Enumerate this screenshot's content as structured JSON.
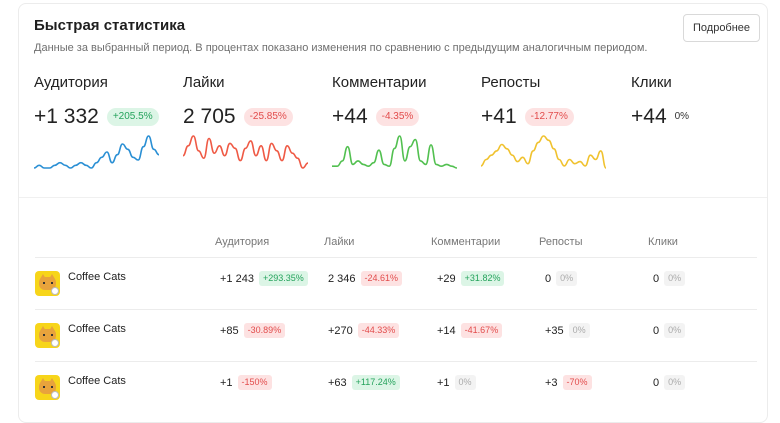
{
  "header": {
    "title": "Быстрая статистика",
    "subtitle": "Данные за выбранный период. В процентах показано изменения по сравнению с предыдущим аналогичным периодом.",
    "more_label": "Подробнее"
  },
  "metrics": [
    {
      "label": "Аудитория",
      "value": "+1 332",
      "change": "+205.5%",
      "trend": "pos",
      "color": "#2a8fd4",
      "spark": [
        4,
        5,
        4,
        4,
        5,
        6,
        5,
        4,
        5,
        6,
        5,
        4,
        6,
        8,
        10,
        6,
        9,
        13,
        11,
        8,
        7,
        12,
        16,
        11,
        9
      ]
    },
    {
      "label": "Лайки",
      "value": "2 705",
      "change": "-25.85%",
      "trend": "neg",
      "color": "#ef5a45",
      "spark": [
        8,
        12,
        16,
        10,
        7,
        15,
        9,
        12,
        8,
        13,
        11,
        6,
        11,
        14,
        8,
        12,
        6,
        13,
        10,
        6,
        12,
        9,
        7,
        3,
        5
      ]
    },
    {
      "label": "Комментарии",
      "value": "+44",
      "change": "-4.35%",
      "trend": "neg",
      "color": "#52c050",
      "spark": [
        3,
        3,
        6,
        14,
        4,
        6,
        4,
        3,
        5,
        12,
        4,
        3,
        13,
        20,
        6,
        14,
        18,
        6,
        4,
        15,
        4,
        3,
        4,
        3,
        2
      ]
    },
    {
      "label": "Репосты",
      "value": "+41",
      "change": "-12.77%",
      "trend": "neg",
      "color": "#f0c22f",
      "spark": [
        4,
        7,
        9,
        11,
        14,
        12,
        9,
        6,
        8,
        5,
        11,
        15,
        18,
        16,
        12,
        7,
        4,
        7,
        5,
        6,
        4,
        9,
        7,
        11,
        3
      ]
    },
    {
      "label": "Клики",
      "value": "+44",
      "change": "0%",
      "trend": "zero",
      "color": "#cccccc",
      "spark": []
    }
  ],
  "table": {
    "headers": [
      "Аудитория",
      "Лайки",
      "Комментарии",
      "Репосты",
      "Клики"
    ],
    "rows": [
      {
        "name": "Coffee Cats",
        "cells": [
          {
            "value": "+1 243",
            "change": "+293.35%",
            "trend": "pos"
          },
          {
            "value": "2 346",
            "change": "-24.61%",
            "trend": "neg"
          },
          {
            "value": "+29",
            "change": "+31.82%",
            "trend": "pos"
          },
          {
            "value": "0",
            "change": "0%",
            "trend": "zero"
          },
          {
            "value": "0",
            "change": "0%",
            "trend": "zero"
          }
        ]
      },
      {
        "name": "Coffee Cats",
        "cells": [
          {
            "value": "+85",
            "change": "-30.89%",
            "trend": "neg"
          },
          {
            "value": "+270",
            "change": "-44.33%",
            "trend": "neg"
          },
          {
            "value": "+14",
            "change": "-41.67%",
            "trend": "neg"
          },
          {
            "value": "+35",
            "change": "0%",
            "trend": "zero"
          },
          {
            "value": "0",
            "change": "0%",
            "trend": "zero"
          }
        ]
      },
      {
        "name": "Coffee Cats",
        "cells": [
          {
            "value": "+1",
            "change": "-150%",
            "trend": "neg"
          },
          {
            "value": "+63",
            "change": "+117.24%",
            "trend": "pos"
          },
          {
            "value": "+1",
            "change": "0%",
            "trend": "zero"
          },
          {
            "value": "+3",
            "change": "-70%",
            "trend": "neg"
          },
          {
            "value": "0",
            "change": "0%",
            "trend": "zero"
          }
        ]
      }
    ]
  }
}
